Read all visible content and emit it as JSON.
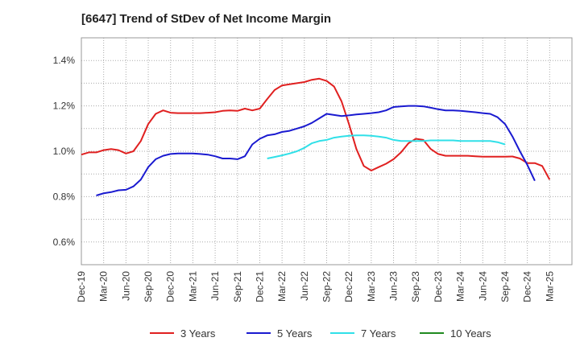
{
  "chart_data": {
    "type": "line",
    "title": "[6647]  Trend of StDev of Net Income Margin",
    "xlabel": "",
    "ylabel": "",
    "ylim": [
      0.5,
      1.5
    ],
    "y_ticks": [
      "0.6%",
      "0.8%",
      "1.0%",
      "1.2%",
      "1.4%"
    ],
    "y_tick_values": [
      0.6,
      0.8,
      1.0,
      1.2,
      1.4
    ],
    "x_ticks": [
      "Dec-19",
      "Mar-20",
      "Jun-20",
      "Sep-20",
      "Dec-20",
      "Mar-21",
      "Jun-21",
      "Sep-21",
      "Dec-21",
      "Mar-22",
      "Jun-22",
      "Sep-22",
      "Dec-22",
      "Mar-23",
      "Jun-23",
      "Sep-23",
      "Dec-23",
      "Mar-24",
      "Jun-24",
      "Sep-24",
      "Dec-24",
      "Mar-25"
    ],
    "grid": true,
    "legend_position": "bottom",
    "series": [
      {
        "name": "3 Years",
        "color": "#e02020",
        "values": [
          0.985,
          0.995,
          0.995,
          1.005,
          1.01,
          1.005,
          0.99,
          1.0,
          1.045,
          1.12,
          1.165,
          1.18,
          1.17,
          1.168,
          1.168,
          1.168,
          1.168,
          1.17,
          1.172,
          1.178,
          1.18,
          1.178,
          1.188,
          1.18,
          1.188,
          1.23,
          1.27,
          1.29,
          1.295,
          1.3,
          1.305,
          1.315,
          1.32,
          1.31,
          1.285,
          1.22,
          1.12,
          1.01,
          0.935,
          0.915,
          0.93,
          0.945,
          0.965,
          0.995,
          1.035,
          1.055,
          1.05,
          1.01,
          0.988,
          0.98,
          0.98,
          0.98,
          0.98,
          0.978,
          0.976,
          0.976,
          0.976,
          0.976,
          0.977,
          0.968,
          0.948,
          0.948,
          0.935,
          0.875
        ]
      },
      {
        "name": "5 Years",
        "color": "#1a1ad0",
        "values": [
          null,
          null,
          0.805,
          0.815,
          0.82,
          0.828,
          0.83,
          0.845,
          0.875,
          0.93,
          0.965,
          0.98,
          0.988,
          0.99,
          0.99,
          0.99,
          0.988,
          0.985,
          0.978,
          0.968,
          0.968,
          0.965,
          0.978,
          1.03,
          1.055,
          1.07,
          1.075,
          1.085,
          1.09,
          1.1,
          1.11,
          1.125,
          1.145,
          1.165,
          1.16,
          1.155,
          1.158,
          1.162,
          1.165,
          1.168,
          1.172,
          1.18,
          1.195,
          1.198,
          1.2,
          1.2,
          1.198,
          1.192,
          1.185,
          1.18,
          1.18,
          1.178,
          1.175,
          1.172,
          1.168,
          1.165,
          1.15,
          1.12,
          1.065,
          1.0,
          0.94,
          0.87
        ]
      },
      {
        "name": "7 Years",
        "color": "#30e0e8",
        "values": [
          null,
          null,
          null,
          null,
          null,
          null,
          null,
          null,
          null,
          null,
          null,
          null,
          null,
          null,
          null,
          null,
          null,
          null,
          null,
          null,
          null,
          null,
          null,
          null,
          null,
          0.968,
          0.975,
          0.982,
          0.99,
          1.0,
          1.015,
          1.035,
          1.045,
          1.05,
          1.06,
          1.065,
          1.068,
          1.07,
          1.07,
          1.068,
          1.065,
          1.06,
          1.05,
          1.045,
          1.045,
          1.045,
          1.045,
          1.048,
          1.048,
          1.048,
          1.048,
          1.045,
          1.045,
          1.045,
          1.045,
          1.045,
          1.04,
          1.03
        ]
      },
      {
        "name": "10 Years",
        "color": "#208a20",
        "values": []
      }
    ]
  }
}
